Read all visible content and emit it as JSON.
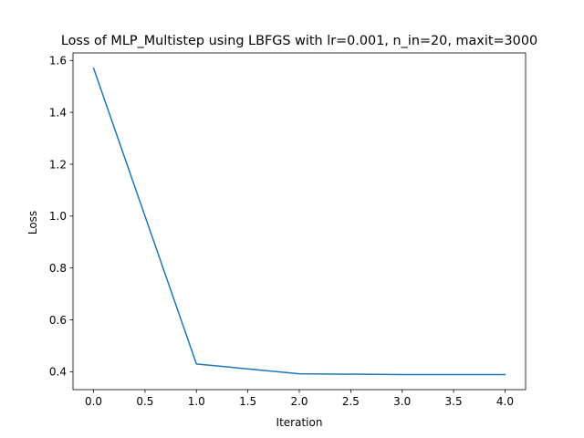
{
  "chart_data": {
    "type": "line",
    "title": "Loss of MLP_Multistep using LBFGS with lr=0.001, n_in=20, maxit=3000",
    "xlabel": "Iteration",
    "ylabel": "Loss",
    "x": [
      0,
      1,
      2,
      3,
      4
    ],
    "series": [
      {
        "values": [
          1.57,
          0.43,
          0.392,
          0.389,
          0.389
        ],
        "color": "#1f77b4"
      }
    ],
    "xlim": [
      -0.2,
      4.2
    ],
    "ylim": [
      0.331,
      1.629
    ],
    "xticks": [
      0.0,
      0.5,
      1.0,
      1.5,
      2.0,
      2.5,
      3.0,
      3.5,
      4.0
    ],
    "xtick_labels": [
      "0.0",
      "0.5",
      "1.0",
      "1.5",
      "2.0",
      "2.5",
      "3.0",
      "3.5",
      "4.0"
    ],
    "yticks": [
      0.4,
      0.6,
      0.8,
      1.0,
      1.2,
      1.4,
      1.6
    ],
    "ytick_labels": [
      "0.4",
      "0.6",
      "0.8",
      "1.0",
      "1.2",
      "1.4",
      "1.6"
    ],
    "grid": false,
    "legend": "none"
  }
}
